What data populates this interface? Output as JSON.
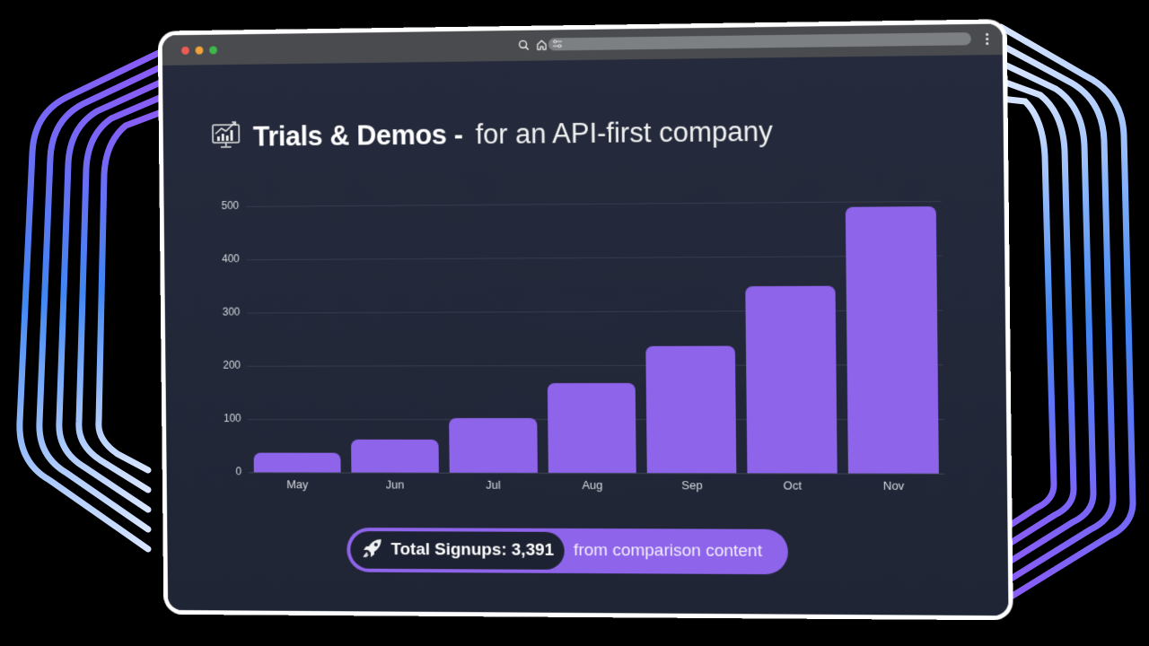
{
  "window": {
    "traffic_lights": [
      {
        "name": "close",
        "color": "#ed5b55"
      },
      {
        "name": "minimize",
        "color": "#f1a33a"
      },
      {
        "name": "maximize",
        "color": "#3fb84a"
      }
    ],
    "toolbar_icons": [
      "search-icon",
      "home-icon",
      "tune-icon"
    ],
    "menu_icon": "more-vertical-icon"
  },
  "header": {
    "icon": "chart-monitor-icon",
    "title_bold": "Trials & Demos -",
    "title_light": "for an API-first company"
  },
  "chart_data": {
    "type": "bar",
    "title": "Trials & Demos - for an API-first company",
    "categories": [
      "May",
      "Jun",
      "Jul",
      "Aug",
      "Sep",
      "Oct",
      "Nov"
    ],
    "values": [
      36,
      62,
      102,
      167,
      235,
      345,
      490
    ],
    "xlabel": "",
    "ylabel": "",
    "ylim": [
      0,
      500
    ],
    "yticks": [
      0,
      100,
      200,
      300,
      400,
      500
    ],
    "grid": true,
    "legend": "none",
    "bar_color": "#8e64ea"
  },
  "summary": {
    "icon": "rocket-icon",
    "label": "Total Signups: 3,391",
    "suffix": "from comparison content"
  },
  "colors": {
    "accent": "#8e64ea",
    "background": "#222839",
    "titlebar": "#4a4b4e"
  }
}
